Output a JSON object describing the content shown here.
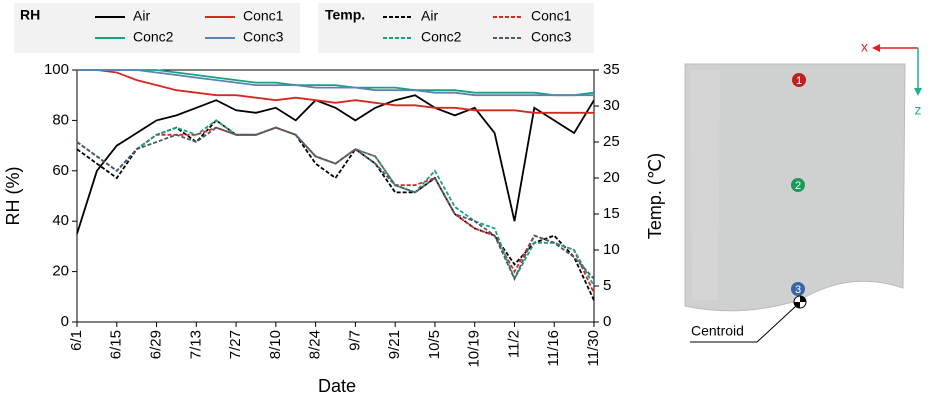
{
  "chart_data": {
    "type": "line",
    "legend_groups": [
      "RH",
      "Temp."
    ],
    "x_label": "Date",
    "y_label": "RH (%)",
    "y2_label": "Temp. (℃)",
    "x": [
      "6/1",
      "6/8",
      "6/15",
      "6/22",
      "6/29",
      "7/6",
      "7/13",
      "7/20",
      "7/27",
      "8/3",
      "8/10",
      "8/17",
      "8/24",
      "8/31",
      "9/7",
      "9/14",
      "9/21",
      "9/28",
      "10/5",
      "10/12",
      "10/19",
      "10/26",
      "11/2",
      "11/9",
      "11/16",
      "11/23",
      "11/30"
    ],
    "xlim": [
      "6/1",
      "11/30"
    ],
    "xticks": [
      "6/1",
      "6/15",
      "6/29",
      "7/13",
      "7/27",
      "8/10",
      "8/24",
      "9/7",
      "9/21",
      "10/5",
      "10/19",
      "11/2",
      "11/16",
      "11/30"
    ],
    "ylim": [
      0,
      100
    ],
    "yticks": [
      0,
      20,
      40,
      60,
      80,
      100
    ],
    "y2lim": [
      0,
      35
    ],
    "y2ticks": [
      0,
      5,
      10,
      15,
      20,
      25,
      30,
      35
    ],
    "series": [
      {
        "name": "Air",
        "color": "#000000",
        "dash": false,
        "values": [
          35,
          60,
          70,
          75,
          80,
          82,
          85,
          88,
          84,
          83,
          85,
          80,
          88,
          85,
          80,
          85,
          88,
          90,
          85,
          82,
          85,
          75,
          40,
          85,
          80,
          75,
          88
        ]
      },
      {
        "name": "Conc1",
        "color": "#d42a22",
        "dash": false,
        "values": [
          100,
          100,
          99,
          96,
          94,
          92,
          91,
          90,
          90,
          89,
          88,
          89,
          88,
          87,
          88,
          87,
          86,
          86,
          85,
          85,
          84,
          84,
          84,
          83,
          83,
          83,
          83
        ]
      },
      {
        "name": "Conc2",
        "color": "#1aa082",
        "dash": false,
        "values": [
          100,
          100,
          100,
          100,
          100,
          99,
          98,
          97,
          96,
          95,
          95,
          94,
          94,
          94,
          93,
          93,
          93,
          92,
          92,
          92,
          91,
          91,
          91,
          91,
          90,
          90,
          91
        ]
      },
      {
        "name": "Conc3",
        "color": "#5b84b1",
        "dash": false,
        "values": [
          100,
          100,
          100,
          100,
          99,
          98,
          97,
          96,
          95,
          94,
          94,
          94,
          93,
          93,
          93,
          92,
          92,
          92,
          91,
          91,
          90,
          90,
          90,
          90,
          90,
          90,
          90
        ]
      },
      {
        "name": "Air",
        "color": "#000000",
        "dash": true,
        "axis": "y2",
        "values": [
          24,
          22,
          20,
          24,
          26,
          27,
          25,
          28,
          26,
          26,
          27,
          26,
          22,
          20,
          24,
          22,
          18,
          18,
          20,
          15,
          13,
          12,
          8,
          11,
          12,
          9,
          3
        ]
      },
      {
        "name": "Conc1",
        "color": "#d42a22",
        "dash": true,
        "axis": "y2",
        "values": [
          25,
          23,
          21,
          24,
          26,
          26,
          26,
          27,
          26,
          26,
          27,
          26,
          23,
          22,
          24,
          23,
          19,
          19,
          20,
          15,
          13,
          12,
          7,
          12,
          11,
          10,
          4
        ]
      },
      {
        "name": "Conc2",
        "color": "#1aa082",
        "dash": true,
        "axis": "y2",
        "values": [
          25,
          23,
          21,
          24,
          26,
          27,
          26,
          28,
          26,
          26,
          27,
          26,
          23,
          22,
          24,
          23,
          19,
          18,
          21,
          16,
          14,
          13,
          6,
          11,
          11,
          10,
          5
        ]
      },
      {
        "name": "Conc3",
        "color": "#4a5a70",
        "dash": true,
        "axis": "y2",
        "values": [
          25,
          23,
          21,
          24,
          25,
          26,
          25,
          27,
          26,
          26,
          27,
          26,
          23,
          22,
          24,
          22,
          19,
          18,
          20,
          15,
          14,
          12,
          6,
          12,
          11,
          9,
          6
        ]
      }
    ]
  },
  "diagram": {
    "x_label": "x",
    "z_label": "z",
    "points": [
      "1",
      "2",
      "3"
    ],
    "centroid_label": "Centroid"
  }
}
